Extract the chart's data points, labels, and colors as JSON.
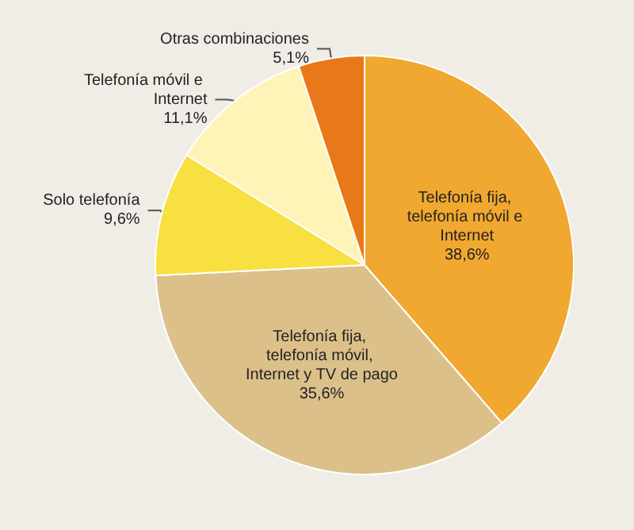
{
  "chart_data": {
    "type": "pie",
    "categories": [
      "Telefonía fija, telefonía móvil e Internet",
      "Telefonía fija, telefonía móvil, Internet y TV de pago",
      "Solo telefonía",
      "Telefonía móvil e Internet",
      "Otras combinaciones"
    ],
    "values": [
      38.6,
      35.6,
      9.6,
      11.1,
      5.1
    ],
    "colors": [
      "#f0a830",
      "#dcc08a",
      "#f8e040",
      "#fff4b8",
      "#e87818"
    ],
    "value_labels": [
      "38,6%",
      "35,6%",
      "9,6%",
      "11,1%",
      "5,1%"
    ]
  }
}
